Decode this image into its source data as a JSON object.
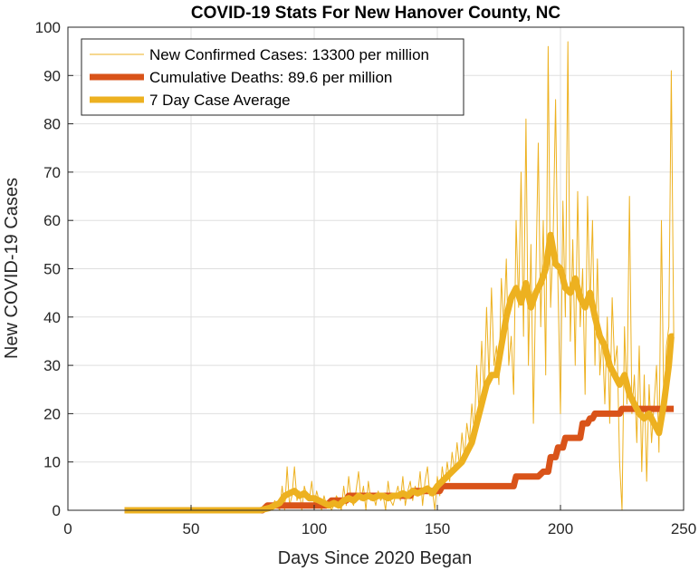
{
  "chart_data": {
    "type": "line",
    "title": "COVID-19 Stats For New Hanover County, NC",
    "xlabel": "Days Since 2020 Began",
    "ylabel": "New COVID-19 Cases",
    "xlim": [
      0,
      250
    ],
    "ylim": [
      0,
      100
    ],
    "xticks": [
      0,
      50,
      100,
      150,
      200,
      250
    ],
    "yticks": [
      0,
      10,
      20,
      30,
      40,
      50,
      60,
      70,
      80,
      90,
      100
    ],
    "grid": true,
    "legend_position": "top-left",
    "series": [
      {
        "name": "New Confirmed Cases: 13300 per million",
        "color": "#EDB120",
        "style": "thin",
        "points": [
          [
            23,
            0
          ],
          [
            30,
            0
          ],
          [
            40,
            0
          ],
          [
            50,
            0
          ],
          [
            60,
            0
          ],
          [
            70,
            0
          ],
          [
            78,
            0
          ],
          [
            80,
            1
          ],
          [
            82,
            0
          ],
          [
            84,
            2
          ],
          [
            86,
            0
          ],
          [
            87,
            5
          ],
          [
            88,
            0
          ],
          [
            89,
            9
          ],
          [
            90,
            1
          ],
          [
            91,
            3
          ],
          [
            92,
            9
          ],
          [
            93,
            2
          ],
          [
            94,
            4
          ],
          [
            95,
            0
          ],
          [
            96,
            5
          ],
          [
            97,
            3
          ],
          [
            98,
            2
          ],
          [
            99,
            6
          ],
          [
            100,
            1
          ],
          [
            101,
            4
          ],
          [
            102,
            2
          ],
          [
            103,
            0
          ],
          [
            104,
            3
          ],
          [
            105,
            1
          ],
          [
            106,
            2
          ],
          [
            107,
            0
          ],
          [
            108,
            1
          ],
          [
            109,
            3
          ],
          [
            110,
            2
          ],
          [
            111,
            0
          ],
          [
            112,
            5
          ],
          [
            113,
            1
          ],
          [
            114,
            7
          ],
          [
            115,
            2
          ],
          [
            116,
            1
          ],
          [
            117,
            4
          ],
          [
            118,
            8
          ],
          [
            119,
            2
          ],
          [
            120,
            5
          ],
          [
            121,
            0
          ],
          [
            122,
            6
          ],
          [
            123,
            2
          ],
          [
            124,
            3
          ],
          [
            125,
            1
          ],
          [
            126,
            4
          ],
          [
            127,
            2
          ],
          [
            128,
            3
          ],
          [
            129,
            0
          ],
          [
            130,
            6
          ],
          [
            131,
            2
          ],
          [
            132,
            1
          ],
          [
            133,
            3
          ],
          [
            134,
            5
          ],
          [
            135,
            2
          ],
          [
            136,
            7
          ],
          [
            137,
            1
          ],
          [
            138,
            4
          ],
          [
            139,
            6
          ],
          [
            140,
            2
          ],
          [
            141,
            5
          ],
          [
            142,
            3
          ],
          [
            143,
            8
          ],
          [
            144,
            1
          ],
          [
            145,
            6
          ],
          [
            146,
            9
          ],
          [
            147,
            3
          ],
          [
            148,
            4
          ],
          [
            149,
            0
          ],
          [
            150,
            7
          ],
          [
            151,
            3
          ],
          [
            152,
            9
          ],
          [
            153,
            5
          ],
          [
            154,
            10
          ],
          [
            155,
            6
          ],
          [
            156,
            12
          ],
          [
            157,
            8
          ],
          [
            158,
            14
          ],
          [
            159,
            9
          ],
          [
            160,
            16
          ],
          [
            161,
            11
          ],
          [
            162,
            18
          ],
          [
            163,
            14
          ],
          [
            164,
            22
          ],
          [
            165,
            16
          ],
          [
            166,
            30
          ],
          [
            167,
            20
          ],
          [
            168,
            35
          ],
          [
            169,
            24
          ],
          [
            170,
            42
          ],
          [
            171,
            27
          ],
          [
            172,
            46
          ],
          [
            173,
            30
          ],
          [
            174,
            34
          ],
          [
            175,
            26
          ],
          [
            176,
            48
          ],
          [
            177,
            38
          ],
          [
            178,
            52
          ],
          [
            179,
            30
          ],
          [
            180,
            36
          ],
          [
            181,
            24
          ],
          [
            182,
            60
          ],
          [
            183,
            42
          ],
          [
            184,
            70
          ],
          [
            185,
            36
          ],
          [
            186,
            81
          ],
          [
            187,
            30
          ],
          [
            188,
            55
          ],
          [
            189,
            18
          ],
          [
            190,
            48
          ],
          [
            191,
            76
          ],
          [
            192,
            38
          ],
          [
            193,
            60
          ],
          [
            194,
            28
          ],
          [
            195,
            96
          ],
          [
            196,
            42
          ],
          [
            197,
            55
          ],
          [
            198,
            85
          ],
          [
            199,
            46
          ],
          [
            200,
            20
          ],
          [
            201,
            64
          ],
          [
            202,
            40
          ],
          [
            203,
            97
          ],
          [
            204,
            35
          ],
          [
            205,
            56
          ],
          [
            206,
            30
          ],
          [
            207,
            66
          ],
          [
            208,
            38
          ],
          [
            209,
            50
          ],
          [
            210,
            24
          ],
          [
            211,
            65
          ],
          [
            212,
            42
          ],
          [
            213,
            60
          ],
          [
            214,
            30
          ],
          [
            215,
            52
          ],
          [
            216,
            28
          ],
          [
            217,
            36
          ],
          [
            218,
            22
          ],
          [
            219,
            40
          ],
          [
            220,
            18
          ],
          [
            221,
            44
          ],
          [
            222,
            30
          ],
          [
            223,
            34
          ],
          [
            224,
            10
          ],
          [
            225,
            0
          ],
          [
            226,
            38
          ],
          [
            227,
            22
          ],
          [
            228,
            65
          ],
          [
            229,
            20
          ],
          [
            230,
            28
          ],
          [
            231,
            14
          ],
          [
            232,
            34
          ],
          [
            233,
            8
          ],
          [
            234,
            28
          ],
          [
            235,
            6
          ],
          [
            236,
            26
          ],
          [
            237,
            14
          ],
          [
            238,
            22
          ],
          [
            239,
            30
          ],
          [
            240,
            12
          ],
          [
            241,
            60
          ],
          [
            242,
            20
          ],
          [
            243,
            34
          ],
          [
            244,
            38
          ],
          [
            245,
            91
          ],
          [
            246,
            36
          ]
        ]
      },
      {
        "name": "Cumulative Deaths: 89.6 per million",
        "color": "#D95319",
        "style": "thick",
        "points": [
          [
            23,
            0
          ],
          [
            79,
            0
          ],
          [
            81,
            1
          ],
          [
            105,
            1
          ],
          [
            107,
            2
          ],
          [
            113,
            2
          ],
          [
            114,
            3
          ],
          [
            139,
            3
          ],
          [
            140,
            4
          ],
          [
            151,
            4
          ],
          [
            152,
            5
          ],
          [
            181,
            5
          ],
          [
            182,
            7
          ],
          [
            191,
            7
          ],
          [
            193,
            8
          ],
          [
            195,
            8
          ],
          [
            196,
            11
          ],
          [
            198,
            11
          ],
          [
            199,
            13
          ],
          [
            201,
            13
          ],
          [
            202,
            15
          ],
          [
            208,
            15
          ],
          [
            209,
            18
          ],
          [
            211,
            18
          ],
          [
            212,
            19
          ],
          [
            213,
            19
          ],
          [
            214,
            20
          ],
          [
            224,
            20
          ],
          [
            225,
            21
          ],
          [
            236,
            21
          ],
          [
            237,
            21
          ],
          [
            246,
            21
          ]
        ]
      },
      {
        "name": "7 Day Case Average",
        "color": "#EDB120",
        "style": "thick",
        "points": [
          [
            23,
            0
          ],
          [
            40,
            0
          ],
          [
            60,
            0
          ],
          [
            78,
            0
          ],
          [
            82,
            0.5
          ],
          [
            86,
            1.5
          ],
          [
            88,
            3
          ],
          [
            90,
            3.5
          ],
          [
            92,
            4
          ],
          [
            94,
            3
          ],
          [
            96,
            3.5
          ],
          [
            98,
            2.5
          ],
          [
            100,
            2.5
          ],
          [
            102,
            2
          ],
          [
            104,
            1.5
          ],
          [
            106,
            1
          ],
          [
            108,
            1.5
          ],
          [
            110,
            1
          ],
          [
            112,
            2
          ],
          [
            114,
            2.5
          ],
          [
            116,
            2
          ],
          [
            118,
            3
          ],
          [
            120,
            2.5
          ],
          [
            122,
            3
          ],
          [
            124,
            2.5
          ],
          [
            126,
            3
          ],
          [
            128,
            3
          ],
          [
            130,
            2.5
          ],
          [
            132,
            3
          ],
          [
            134,
            3
          ],
          [
            136,
            3.5
          ],
          [
            138,
            3
          ],
          [
            140,
            4
          ],
          [
            142,
            3.5
          ],
          [
            144,
            4
          ],
          [
            146,
            4.5
          ],
          [
            148,
            3.5
          ],
          [
            150,
            5
          ],
          [
            152,
            6
          ],
          [
            154,
            7
          ],
          [
            156,
            8
          ],
          [
            158,
            9
          ],
          [
            160,
            10
          ],
          [
            162,
            12
          ],
          [
            164,
            14
          ],
          [
            166,
            18
          ],
          [
            168,
            22
          ],
          [
            170,
            26
          ],
          [
            172,
            28
          ],
          [
            174,
            28
          ],
          [
            176,
            34
          ],
          [
            178,
            40
          ],
          [
            180,
            44
          ],
          [
            182,
            46
          ],
          [
            184,
            43
          ],
          [
            186,
            47
          ],
          [
            188,
            42
          ],
          [
            190,
            45
          ],
          [
            192,
            47
          ],
          [
            194,
            50
          ],
          [
            196,
            57
          ],
          [
            198,
            51
          ],
          [
            200,
            50
          ],
          [
            202,
            46
          ],
          [
            204,
            45
          ],
          [
            206,
            48
          ],
          [
            208,
            44
          ],
          [
            210,
            42
          ],
          [
            212,
            45
          ],
          [
            214,
            40
          ],
          [
            216,
            36
          ],
          [
            218,
            34
          ],
          [
            220,
            30
          ],
          [
            222,
            28
          ],
          [
            224,
            26
          ],
          [
            226,
            28
          ],
          [
            228,
            24
          ],
          [
            230,
            22
          ],
          [
            232,
            20
          ],
          [
            234,
            19
          ],
          [
            236,
            20
          ],
          [
            238,
            18
          ],
          [
            240,
            16
          ],
          [
            242,
            22
          ],
          [
            244,
            30
          ],
          [
            245,
            36
          ],
          [
            246,
            36
          ]
        ]
      }
    ]
  }
}
